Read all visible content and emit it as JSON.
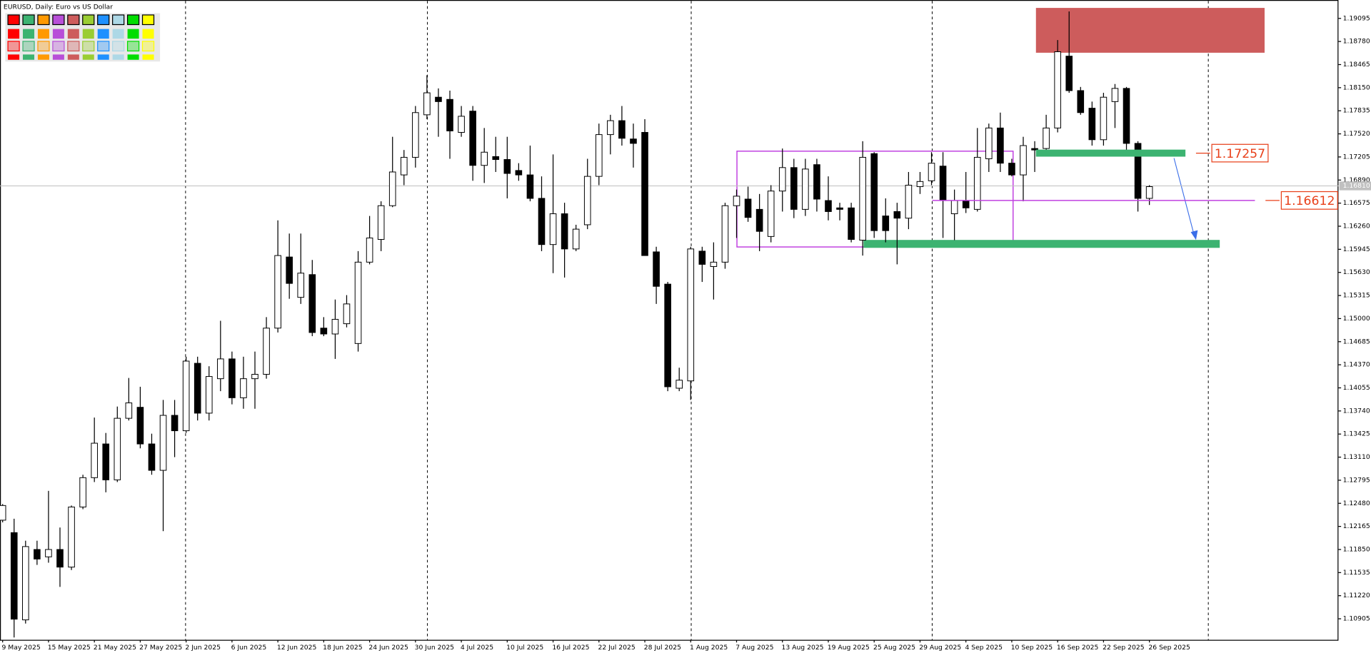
{
  "chart_data": {
    "type": "candlestick",
    "title": "EURUSD, Daily:  Euro vs US Dollar",
    "categories": [
      "9 May 2025",
      null,
      null,
      null,
      "15 May 2025",
      null,
      null,
      null,
      "21 May 2025",
      null,
      null,
      null,
      "27 May 2025",
      null,
      null,
      null,
      "2 Jun 2025",
      null,
      null,
      null,
      "6 Jun 2025",
      null,
      null,
      null,
      "12 Jun 2025",
      null,
      null,
      null,
      "18 Jun 2025",
      null,
      null,
      null,
      "24 Jun 2025",
      null,
      null,
      null,
      "30 Jun 2025",
      null,
      null,
      null,
      "4 Jul 2025",
      null,
      null,
      null,
      "10 Jul 2025",
      null,
      null,
      null,
      "16 Jul 2025",
      null,
      null,
      null,
      "22 Jul 2025",
      null,
      null,
      null,
      "28 Jul 2025",
      null,
      null,
      null,
      "1 Aug 2025",
      null,
      null,
      null,
      "7 Aug 2025",
      null,
      null,
      null,
      "13 Aug 2025",
      null,
      null,
      null,
      "19 Aug 2025",
      null,
      null,
      null,
      "25 Aug 2025",
      null,
      null,
      null,
      "29 Aug 2025",
      null,
      null,
      null,
      "4 Sep 2025",
      null,
      null,
      null,
      "10 Sep 2025",
      null,
      null,
      null,
      "16 Sep 2025",
      null,
      null,
      null,
      "22 Sep 2025",
      null,
      null,
      null,
      "26 Sep 2025"
    ],
    "open": [
      1.1225,
      1.1208,
      1.1089,
      1.1185,
      1.1175,
      1.1185,
      1.1161,
      1.1243,
      1.1283,
      1.1329,
      1.128,
      1.1364,
      1.1379,
      1.1329,
      1.1293,
      1.1368,
      1.1347,
      1.1439,
      1.1371,
      1.1418,
      1.1445,
      1.1392,
      1.1418,
      1.1424,
      1.1487,
      1.1584,
      1.1529,
      1.156,
      1.1487,
      1.1479,
      1.1493,
      1.1466,
      1.1577,
      1.1608,
      1.1654,
      1.1696,
      1.172,
      1.1778,
      1.1802,
      1.1799,
      1.1754,
      1.1783,
      1.1709,
      1.1721,
      1.1717,
      1.1702,
      1.1696,
      1.1664,
      1.1601,
      1.1643,
      1.1595,
      1.1628,
      1.1694,
      1.1751,
      1.177,
      1.1745,
      1.1754,
      1.1591,
      1.1547,
      1.1405,
      1.1415,
      1.1592,
      1.1571,
      1.1577,
      1.1654,
      1.1663,
      1.1649,
      1.1612,
      1.1674,
      1.1706,
      1.1649,
      1.171,
      1.1661,
      1.1651,
      1.1651,
      1.1607,
      1.1725,
      1.164,
      1.1646,
      1.1637,
      1.168,
      1.1688,
      1.1708,
      1.1643,
      1.1661,
      1.1649,
      1.1718,
      1.176,
      1.1712,
      1.1696,
      1.1732,
      1.1732,
      1.176,
      1.1858,
      1.1811,
      1.1787,
      1.1744,
      1.1796,
      1.1814,
      1.1739,
      1.1664
    ],
    "high": [
      1.1247,
      1.1227,
      1.1197,
      1.1197,
      1.1265,
      1.1215,
      1.1245,
      1.1287,
      1.1365,
      1.1344,
      1.138,
      1.1419,
      1.1407,
      1.1343,
      1.1389,
      1.1389,
      1.1448,
      1.1448,
      1.1435,
      1.1497,
      1.1455,
      1.1448,
      1.1455,
      1.1502,
      1.1634,
      1.1616,
      1.1616,
      1.158,
      1.1502,
      1.1526,
      1.1532,
      1.1592,
      1.164,
      1.166,
      1.1748,
      1.173,
      1.179,
      1.1832,
      1.1814,
      1.1811,
      1.179,
      1.179,
      1.176,
      1.1748,
      1.1748,
      1.1712,
      1.1736,
      1.1694,
      1.1724,
      1.1658,
      1.1628,
      1.1718,
      1.1766,
      1.1778,
      1.179,
      1.1766,
      1.1772,
      1.1598,
      1.155,
      1.1433,
      1.1598,
      1.1598,
      1.1604,
      1.1658,
      1.1676,
      1.168,
      1.167,
      1.1682,
      1.1732,
      1.1718,
      1.1718,
      1.1718,
      1.1694,
      1.1658,
      1.1658,
      1.1742,
      1.1727,
      1.1664,
      1.1658,
      1.17,
      1.17,
      1.1727,
      1.1727,
      1.1676,
      1.17,
      1.176,
      1.1766,
      1.1781,
      1.1718,
      1.1748,
      1.1742,
      1.1778,
      1.188,
      1.1919,
      1.1816,
      1.1796,
      1.1808,
      1.182,
      1.1816,
      1.1742,
      1.1682
    ],
    "low": [
      1.1222,
      1.1065,
      1.1084,
      1.1164,
      1.1167,
      1.1134,
      1.1157,
      1.124,
      1.1277,
      1.1263,
      1.1277,
      1.1361,
      1.1323,
      1.1287,
      1.121,
      1.1311,
      1.1344,
      1.1361,
      1.1361,
      1.1401,
      1.1383,
      1.1377,
      1.1377,
      1.1418,
      1.1481,
      1.1527,
      1.152,
      1.1476,
      1.1476,
      1.1445,
      1.1488,
      1.1455,
      1.1574,
      1.1592,
      1.1652,
      1.1682,
      1.1706,
      1.1772,
      1.1748,
      1.1718,
      1.1748,
      1.1688,
      1.1685,
      1.17,
      1.1664,
      1.1688,
      1.166,
      1.1592,
      1.1562,
      1.1556,
      1.1592,
      1.1622,
      1.1682,
      1.1724,
      1.1736,
      1.1706,
      1.1586,
      1.152,
      1.1401,
      1.1401,
      1.1389,
      1.155,
      1.1526,
      1.1568,
      1.161,
      1.1632,
      1.1592,
      1.1604,
      1.1646,
      1.1637,
      1.164,
      1.1646,
      1.1634,
      1.1634,
      1.1604,
      1.1586,
      1.161,
      1.1604,
      1.1574,
      1.1622,
      1.167,
      1.1682,
      1.161,
      1.1607,
      1.1644,
      1.1646,
      1.17,
      1.17,
      1.1694,
      1.166,
      1.17,
      1.1724,
      1.1754,
      1.1808,
      1.1778,
      1.1736,
      1.1736,
      1.176,
      1.173,
      1.1646,
      1.1655
    ],
    "close": [
      1.1245,
      1.109,
      1.1189,
      1.1172,
      1.1185,
      1.1161,
      1.1243,
      1.1283,
      1.133,
      1.128,
      1.1364,
      1.1385,
      1.1329,
      1.1293,
      1.1368,
      1.1347,
      1.1442,
      1.1371,
      1.1421,
      1.1445,
      1.1392,
      1.1418,
      1.1424,
      1.1487,
      1.1586,
      1.1548,
      1.1562,
      1.1481,
      1.1479,
      1.1499,
      1.152,
      1.1577,
      1.161,
      1.1654,
      1.17,
      1.172,
      1.1781,
      1.1808,
      1.1796,
      1.1756,
      1.1776,
      1.1709,
      1.1727,
      1.1717,
      1.1698,
      1.1696,
      1.1664,
      1.1601,
      1.1643,
      1.1595,
      1.1622,
      1.1694,
      1.1751,
      1.177,
      1.1746,
      1.1739,
      1.1586,
      1.1544,
      1.1407,
      1.1416,
      1.1595,
      1.1574,
      1.1577,
      1.1654,
      1.1667,
      1.1638,
      1.1619,
      1.1674,
      1.1706,
      1.1649,
      1.1704,
      1.1663,
      1.1646,
      1.1649,
      1.1608,
      1.172,
      1.162,
      1.162,
      1.1637,
      1.1682,
      1.1687,
      1.1712,
      1.1661,
      1.1661,
      1.1651,
      1.172,
      1.176,
      1.1712,
      1.1696,
      1.1736,
      1.173,
      1.176,
      1.1864,
      1.1811,
      1.1781,
      1.1744,
      1.1802,
      1.1814,
      1.1739,
      1.1664,
      1.168
    ],
    "up_color": "#ffffff",
    "down_color": "#000000",
    "ylim": [
      1.10618,
      1.19334
    ],
    "yticks": [
      {
        "value": 1.19095,
        "label": "1.19095"
      },
      {
        "value": 1.1878,
        "label": "1.18780"
      },
      {
        "value": 1.18465,
        "label": "1.18465"
      },
      {
        "value": 1.1815,
        "label": "1.18150"
      },
      {
        "value": 1.17835,
        "label": "1.17835"
      },
      {
        "value": 1.1752,
        "label": "1.17520"
      },
      {
        "value": 1.17205,
        "label": "1.17205"
      },
      {
        "value": 1.1689,
        "label": "1.16890"
      },
      {
        "value": 1.16575,
        "label": "1.16575"
      },
      {
        "value": 1.1626,
        "label": "1.16260"
      },
      {
        "value": 1.15945,
        "label": "1.15945"
      },
      {
        "value": 1.1563,
        "label": "1.15630"
      },
      {
        "value": 1.15315,
        "label": "1.15315"
      },
      {
        "value": 1.15,
        "label": "1.15000"
      },
      {
        "value": 1.14685,
        "label": "1.14685"
      },
      {
        "value": 1.1437,
        "label": "1.14370"
      },
      {
        "value": 1.14055,
        "label": "1.14055"
      },
      {
        "value": 1.1374,
        "label": "1.13740"
      },
      {
        "value": 1.13425,
        "label": "1.13425"
      },
      {
        "value": 1.1311,
        "label": "1.13110"
      },
      {
        "value": 1.12795,
        "label": "1.12795"
      },
      {
        "value": 1.1248,
        "label": "1.12480"
      },
      {
        "value": 1.12165,
        "label": "1.12165"
      },
      {
        "value": 1.1185,
        "label": "1.11850"
      },
      {
        "value": 1.11535,
        "label": "1.11535"
      },
      {
        "value": 1.1122,
        "label": "1.11220"
      },
      {
        "value": 1.10905,
        "label": "1.10905"
      }
    ],
    "last_price": {
      "value": 1.1681,
      "label": "1.16810"
    },
    "annotations": [
      {
        "value": 1.17257,
        "color": "#e8401a"
      },
      {
        "value": 1.16612,
        "color": "#e8401a"
      }
    ]
  }
}
